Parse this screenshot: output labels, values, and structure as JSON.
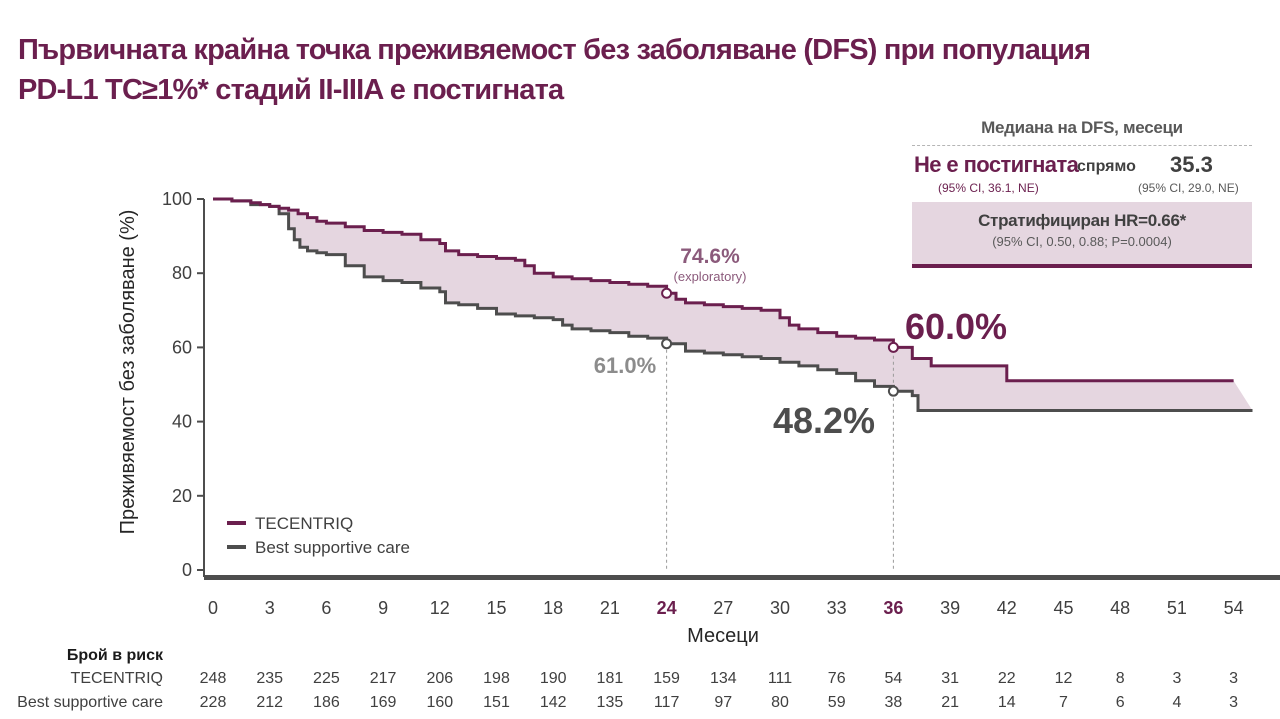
{
  "title": {
    "line1": "Първичната крайна точка преживяемост без заболяване (DFS) при популация",
    "line2": "PD-L1 TC≥1%* стадий II-IIIA е постигната"
  },
  "median_box": {
    "header": "Медиана на DFS, месеци",
    "tecentriq_value": "Не е постигната",
    "versus": "спрямо",
    "bsc_value": "35.3",
    "tecentriq_ci": "(95% CI, 36.1, NE)",
    "bsc_ci": "(95% CI, 29.0, NE)",
    "hr_text": "Стратифициран HR=0.66*",
    "hr_ci": "(95% CI, 0.50, 0.88; P=0.0004)"
  },
  "colors": {
    "tecentriq": "#6b1f4e",
    "bsc": "#4d4d4d",
    "band_fill": "#e5d6e0",
    "title": "#6b1f4e"
  },
  "chart_data": {
    "type": "line",
    "xlabel": "Месеци",
    "ylabel": "Преживяемост без заболяване (%)",
    "xlim": [
      0,
      55
    ],
    "ylim": [
      0,
      100
    ],
    "xticks": [
      0,
      3,
      6,
      9,
      12,
      15,
      18,
      21,
      24,
      27,
      30,
      33,
      36,
      39,
      42,
      45,
      48,
      51,
      54
    ],
    "xticks_highlighted": [
      24,
      36
    ],
    "yticks": [
      0,
      20,
      40,
      60,
      80,
      100
    ],
    "grid": false,
    "legend_position": "bottom-left",
    "series": [
      {
        "name": "TECENTRIQ",
        "x": [
          0,
          1,
          2,
          2.5,
          3,
          3.5,
          4,
          4.5,
          5,
          5.5,
          6,
          7,
          8,
          9,
          10,
          11,
          12,
          12.3,
          13,
          14,
          15,
          16,
          16.5,
          17,
          18,
          19,
          20,
          21,
          22,
          23,
          24,
          24.5,
          25,
          26,
          27,
          28,
          29,
          30,
          30.5,
          31,
          32,
          33,
          34,
          35,
          36,
          37,
          38,
          39,
          40,
          41,
          42,
          43,
          44,
          45,
          46,
          47,
          48,
          49,
          50,
          51,
          52,
          53,
          54
        ],
        "y": [
          100,
          99.5,
          99,
          98.5,
          98,
          97.5,
          97,
          96,
          95,
          94,
          93.5,
          92.5,
          91.5,
          91,
          90.5,
          89,
          88,
          86,
          85,
          84.5,
          84,
          83.5,
          82,
          80,
          79,
          78.5,
          78,
          77.5,
          77,
          76.5,
          74.6,
          73,
          72,
          71.5,
          71,
          70.5,
          70,
          68,
          66,
          65,
          64,
          63,
          62.5,
          62,
          60,
          57,
          55,
          55,
          55,
          55,
          51,
          51,
          51,
          51,
          51,
          51,
          51,
          51,
          51,
          51,
          51,
          51,
          51
        ]
      },
      {
        "name": "Best supportive care",
        "x": [
          0,
          1,
          2,
          3,
          3.5,
          4,
          4.3,
          4.6,
          5,
          5.5,
          6,
          7,
          8,
          9,
          10,
          11,
          12,
          12.3,
          13,
          14,
          15,
          16,
          17,
          18,
          18.5,
          19,
          20,
          21,
          22,
          23,
          24,
          25,
          26,
          27,
          28,
          29,
          30,
          31,
          32,
          33,
          34,
          35,
          36,
          37,
          37.3,
          38,
          39,
          40,
          41,
          42,
          43,
          44,
          45,
          46,
          47,
          48,
          49,
          50,
          51,
          52,
          53,
          54,
          55
        ],
        "y": [
          100,
          99.5,
          98.5,
          98,
          96,
          92,
          89,
          87,
          86,
          85.5,
          85,
          82,
          79,
          78,
          77.5,
          76,
          75,
          72,
          71.5,
          70.5,
          69,
          68.5,
          68,
          67.5,
          66,
          65,
          64.5,
          64,
          63,
          62.5,
          61,
          59,
          58.5,
          58,
          57.5,
          57,
          56,
          55,
          54,
          53,
          51,
          49.5,
          48.2,
          47,
          43,
          43,
          43,
          43,
          43,
          43,
          43,
          43,
          43,
          43,
          43,
          43,
          43,
          43,
          43,
          43,
          43,
          43,
          43
        ]
      }
    ],
    "annotations": [
      {
        "label": "74.6%",
        "sublabel": "(exploratory)",
        "x": 24,
        "y": 74.6,
        "series": "TECENTRIQ"
      },
      {
        "label": "61.0%",
        "x": 24,
        "y": 61.0,
        "series": "Best supportive care"
      },
      {
        "label": "60.0%",
        "x": 36,
        "y": 60.0,
        "series": "TECENTRIQ"
      },
      {
        "label": "48.2%",
        "x": 36,
        "y": 48.2,
        "series": "Best supportive care"
      }
    ],
    "number_at_risk": {
      "title": "Брой в риск",
      "times": [
        0,
        3,
        6,
        9,
        12,
        15,
        18,
        21,
        24,
        27,
        30,
        33,
        36,
        39,
        42,
        45,
        48,
        51,
        54
      ],
      "rows": [
        {
          "name": "TECENTRIQ",
          "values": [
            248,
            235,
            225,
            217,
            206,
            198,
            190,
            181,
            159,
            134,
            111,
            76,
            54,
            31,
            22,
            12,
            8,
            3,
            3
          ]
        },
        {
          "name": "Best supportive care",
          "values": [
            228,
            212,
            186,
            169,
            160,
            151,
            142,
            135,
            117,
            97,
            80,
            59,
            38,
            21,
            14,
            7,
            6,
            4,
            3
          ]
        }
      ]
    }
  }
}
